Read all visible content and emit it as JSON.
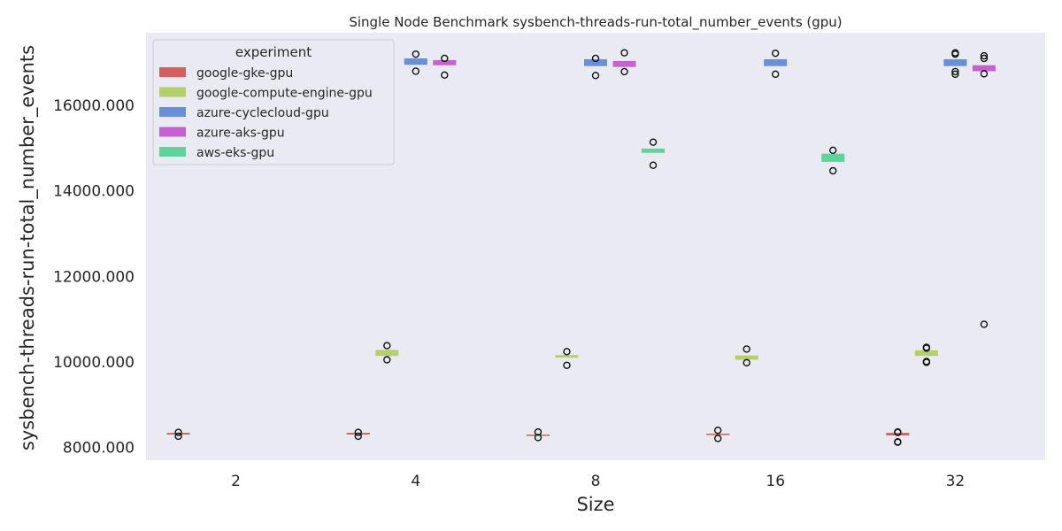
{
  "chart_data": {
    "type": "box",
    "title": "Single Node Benchmark sysbench-threads-run-total_number_events (gpu)",
    "xlabel": "Size",
    "ylabel": "sysbench-threads-run-total_number_events",
    "categories": [
      "2",
      "4",
      "8",
      "16",
      "32"
    ],
    "y_ticks": [
      "8000.000",
      "10000.000",
      "12000.000",
      "14000.000",
      "16000.000"
    ],
    "ylim": [
      7700,
      17700
    ],
    "grid": false,
    "legend_title": "experiment",
    "legend_position": "top-left",
    "series": [
      {
        "name": "google-gke-gpu",
        "color": "#d1605e",
        "boxes": [
          {
            "category": "2",
            "q1": 8300,
            "median": 8320,
            "q3": 8340,
            "outliers": [
              8260,
              8350
            ]
          },
          {
            "category": "4",
            "q1": 8300,
            "median": 8320,
            "q3": 8340,
            "outliers": [
              8260,
              8350
            ]
          },
          {
            "category": "8",
            "q1": 8280,
            "median": 8290,
            "q3": 8300,
            "outliers": [
              8230,
              8360
            ]
          },
          {
            "category": "16",
            "q1": 8300,
            "median": 8310,
            "q3": 8320,
            "outliers": [
              8210,
              8400
            ]
          },
          {
            "category": "32",
            "q1": 8280,
            "median": 8300,
            "q3": 8340,
            "outliers": [
              8120,
              8130,
              8350,
              8360
            ]
          }
        ]
      },
      {
        "name": "google-compute-engine-gpu",
        "color": "#b5cf6b",
        "boxes": [
          {
            "category": "4",
            "q1": 10140,
            "median": 10200,
            "q3": 10280,
            "outliers": [
              10050,
              10380
            ]
          },
          {
            "category": "8",
            "q1": 10100,
            "median": 10130,
            "q3": 10160,
            "outliers": [
              9920,
              10240
            ]
          },
          {
            "category": "16",
            "q1": 10050,
            "median": 10100,
            "q3": 10150,
            "outliers": [
              9980,
              10300
            ]
          },
          {
            "category": "32",
            "q1": 10140,
            "median": 10200,
            "q3": 10270,
            "outliers": [
              9990,
              10010,
              10320,
              10340
            ]
          }
        ]
      },
      {
        "name": "azure-cyclecloud-gpu",
        "color": "#6a8fd9",
        "boxes": [
          {
            "category": "4",
            "q1": 16950,
            "median": 17020,
            "q3": 17100,
            "outliers": [
              16800,
              17200
            ]
          },
          {
            "category": "8",
            "q1": 16920,
            "median": 17000,
            "q3": 17080,
            "outliers": [
              16700,
              17100
            ]
          },
          {
            "category": "16",
            "q1": 16920,
            "median": 17000,
            "q3": 17080,
            "outliers": [
              16730,
              17220
            ]
          },
          {
            "category": "32",
            "q1": 16920,
            "median": 17000,
            "q3": 17080,
            "outliers": [
              16730,
              16790,
              17200,
              17230
            ]
          }
        ]
      },
      {
        "name": "azure-aks-gpu",
        "color": "#c662cf",
        "boxes": [
          {
            "category": "4",
            "q1": 16940,
            "median": 17000,
            "q3": 17060,
            "outliers": [
              16710,
              17100
            ]
          },
          {
            "category": "8",
            "q1": 16900,
            "median": 16970,
            "q3": 17040,
            "outliers": [
              16790,
              17230
            ]
          },
          {
            "category": "32",
            "q1": 16800,
            "median": 16860,
            "q3": 16940,
            "outliers": [
              10880,
              16740,
              17100,
              17160
            ]
          }
        ]
      },
      {
        "name": "aws-eks-gpu",
        "color": "#5fd49a",
        "boxes": [
          {
            "category": "8",
            "q1": 14890,
            "median": 14940,
            "q3": 14990,
            "outliers": [
              14600,
              15140
            ]
          },
          {
            "category": "16",
            "q1": 14680,
            "median": 14770,
            "q3": 14870,
            "outliers": [
              14470,
              14950
            ]
          }
        ]
      }
    ]
  }
}
